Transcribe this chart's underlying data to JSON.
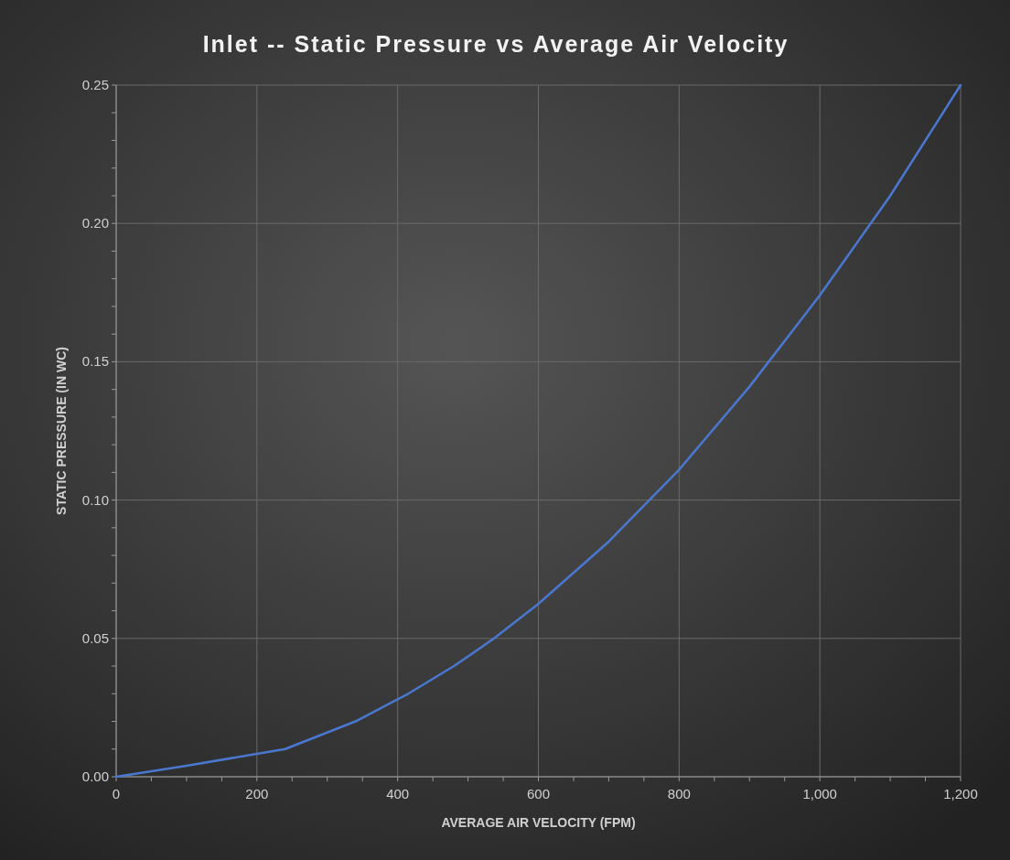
{
  "chart_data": {
    "type": "line",
    "title": "Inlet -- Static Pressure vs Average Air Velocity",
    "xlabel": "AVERAGE AIR VELOCITY (FPM)",
    "ylabel": "STATIC PRESSURE (IN WC)",
    "x": [
      0,
      100,
      240,
      340,
      415,
      480,
      537,
      600,
      700,
      800,
      900,
      1000,
      1100,
      1200
    ],
    "series": [
      {
        "color": "#4a78d0",
        "values": [
          0,
          0.004,
          0.01,
          0.02,
          0.03,
          0.04,
          0.05,
          0.0625,
          0.085,
          0.111,
          0.141,
          0.174,
          0.21,
          0.25
        ]
      }
    ],
    "xlim": [
      0,
      1200
    ],
    "ylim": [
      0,
      0.25
    ],
    "xticks": [
      {
        "value": 0,
        "label": "0"
      },
      {
        "value": 50,
        "label": null
      },
      {
        "value": 100,
        "label": null
      },
      {
        "value": 150,
        "label": null
      },
      {
        "value": 200,
        "label": "200"
      },
      {
        "value": 250,
        "label": null
      },
      {
        "value": 300,
        "label": null
      },
      {
        "value": 350,
        "label": null
      },
      {
        "value": 400,
        "label": "400"
      },
      {
        "value": 450,
        "label": null
      },
      {
        "value": 500,
        "label": null
      },
      {
        "value": 550,
        "label": null
      },
      {
        "value": 600,
        "label": "600"
      },
      {
        "value": 650,
        "label": null
      },
      {
        "value": 700,
        "label": null
      },
      {
        "value": 750,
        "label": null
      },
      {
        "value": 800,
        "label": "800"
      },
      {
        "value": 850,
        "label": null
      },
      {
        "value": 900,
        "label": null
      },
      {
        "value": 950,
        "label": null
      },
      {
        "value": 1000,
        "label": "1,000"
      },
      {
        "value": 1050,
        "label": null
      },
      {
        "value": 1100,
        "label": null
      },
      {
        "value": 1150,
        "label": null
      },
      {
        "value": 1200,
        "label": "1,200"
      }
    ],
    "yticks": [
      {
        "value": 0,
        "label": "0.00"
      },
      {
        "value": 0.01,
        "label": null
      },
      {
        "value": 0.02,
        "label": null
      },
      {
        "value": 0.03,
        "label": null
      },
      {
        "value": 0.04,
        "label": null
      },
      {
        "value": 0.05,
        "label": "0.05"
      },
      {
        "value": 0.06,
        "label": null
      },
      {
        "value": 0.07,
        "label": null
      },
      {
        "value": 0.08,
        "label": null
      },
      {
        "value": 0.09,
        "label": null
      },
      {
        "value": 0.1,
        "label": "0.10"
      },
      {
        "value": 0.11,
        "label": null
      },
      {
        "value": 0.12,
        "label": null
      },
      {
        "value": 0.13,
        "label": null
      },
      {
        "value": 0.14,
        "label": null
      },
      {
        "value": 0.15,
        "label": "0.15"
      },
      {
        "value": 0.16,
        "label": null
      },
      {
        "value": 0.17,
        "label": null
      },
      {
        "value": 0.18,
        "label": null
      },
      {
        "value": 0.19,
        "label": null
      },
      {
        "value": 0.2,
        "label": "0.20"
      },
      {
        "value": 0.21,
        "label": null
      },
      {
        "value": 0.22,
        "label": null
      },
      {
        "value": 0.23,
        "label": null
      },
      {
        "value": 0.24,
        "label": null
      },
      {
        "value": 0.25,
        "label": "0.25"
      }
    ],
    "grid": true,
    "marker": "none",
    "line_style": "solid"
  }
}
